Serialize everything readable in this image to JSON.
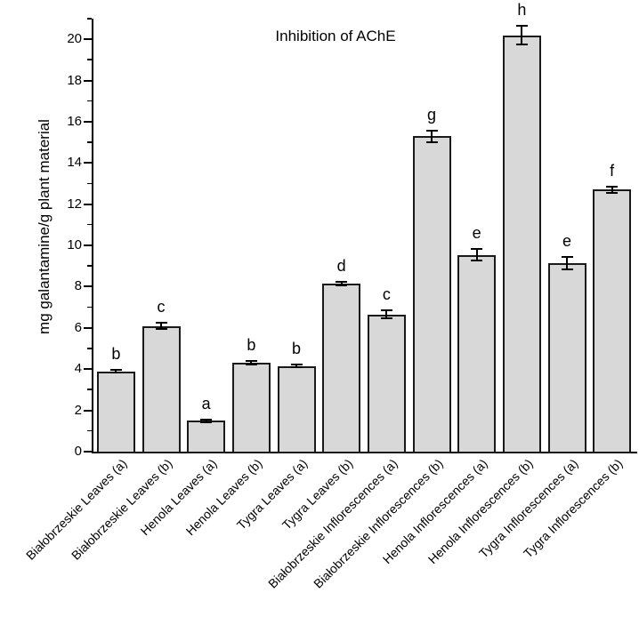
{
  "chart_data": {
    "type": "bar",
    "title": "Inhibition of AChE",
    "xlabel": "",
    "ylabel": "mg galantamine/g plant material",
    "ylim": [
      0,
      21
    ],
    "ytick_step": 2,
    "minor_tick_step": 1,
    "grid": false,
    "legend": "none",
    "bar_fill_color": "#d8d8d8",
    "bar_border_color": "#1a1a1a",
    "axis_color": "#000000",
    "background_color": "#ffffff",
    "categories": [
      "Białobrzeskie Leaves (a)",
      "Białobrzeskie Leaves (b)",
      "Henola Leaves (a)",
      "Henola Leaves (b)",
      "Tygra Leaves (a)",
      "Tygra Leaves (b)",
      "Białobrzeskie Inflorescences (a)",
      "Białobrzeskie Inflorescences (b)",
      "Henola Inflorescences (a)",
      "Henola Inflorescences (b)",
      "Tygra Inflorescences (a)",
      "Tygra Inflorescences (b)"
    ],
    "values": [
      3.9,
      6.1,
      1.5,
      4.3,
      4.15,
      8.15,
      6.65,
      15.3,
      9.55,
      20.2,
      9.15,
      12.7
    ],
    "errors": [
      0.08,
      0.15,
      0.06,
      0.08,
      0.06,
      0.08,
      0.2,
      0.28,
      0.3,
      0.45,
      0.3,
      0.17
    ],
    "sig_letters": [
      "b",
      "c",
      "a",
      "b",
      "b",
      "d",
      "c",
      "g",
      "e",
      "h",
      "e",
      "f"
    ]
  }
}
